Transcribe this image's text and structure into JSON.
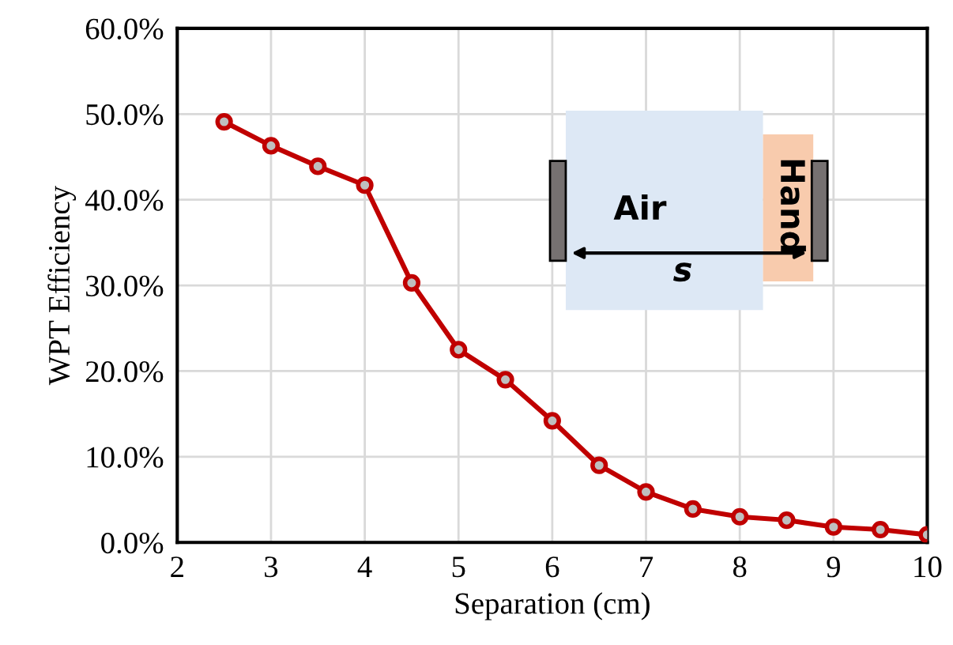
{
  "chart_data": {
    "type": "line",
    "xlabel": "Separation (cm)",
    "ylabel": "WPT Efficiency",
    "x": [
      2.5,
      3,
      3.5,
      4,
      4.5,
      5,
      5.5,
      6,
      6.5,
      7,
      7.5,
      8,
      8.5,
      9,
      9.5,
      10
    ],
    "series": [
      {
        "color": "#c00000",
        "values": [
          49.1,
          46.3,
          43.9,
          41.7,
          30.3,
          22.5,
          19.0,
          14.2,
          9.0,
          5.9,
          3.9,
          3.0,
          2.6,
          1.8,
          1.5,
          0.9
        ]
      }
    ],
    "xlim": [
      2,
      10
    ],
    "xticks": [
      2,
      3,
      4,
      5,
      6,
      7,
      8,
      9,
      10
    ],
    "ylim": [
      0,
      60
    ],
    "yticks": [
      {
        "value": 0,
        "label": "0.0%"
      },
      {
        "value": 10,
        "label": "10.0%"
      },
      {
        "value": 20,
        "label": "20.0%"
      },
      {
        "value": 30,
        "label": "30.0%"
      },
      {
        "value": 40,
        "label": "40.0%"
      },
      {
        "value": 50,
        "label": "50.0%"
      },
      {
        "value": 60,
        "label": "60.0%"
      }
    ],
    "grid": true,
    "marker": "circle",
    "line_style": "solid",
    "annotations": [
      "Air",
      "Hand",
      "s"
    ]
  }
}
